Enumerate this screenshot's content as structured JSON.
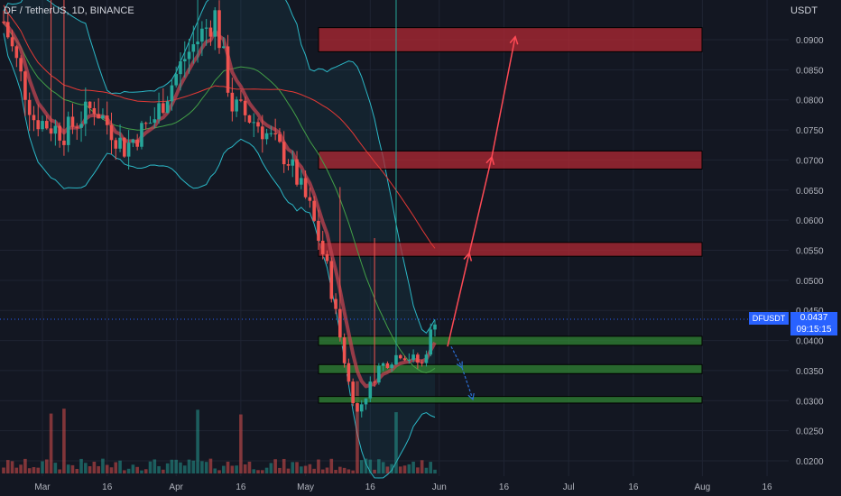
{
  "header": {
    "symbol_title": "DF / TetherUS, 1D, BINANCE",
    "currency": "USDT"
  },
  "price_label": {
    "symbol": "DFUSDT",
    "price": "0.0437",
    "countdown": "09:15:15"
  },
  "colors": {
    "background": "#131722",
    "up": "#26a69a",
    "down": "#ef5350",
    "resistance_zone": "#b22833",
    "support_zone": "#2e7d32",
    "bollinger": "#2bb7c6",
    "ma_red": "#e53935",
    "ma_green": "#43a047",
    "arrow_up": "#ff4a55",
    "arrow_down": "#2b6fd6",
    "price_line": "#2962ff"
  },
  "chart_data": {
    "type": "candlestick",
    "y_axis": {
      "ticks": [
        "0.0900",
        "0.0850",
        "0.0800",
        "0.0750",
        "0.0700",
        "0.0650",
        "0.0600",
        "0.0550",
        "0.0500",
        "0.0450",
        "0.0400",
        "0.0350",
        "0.0300",
        "0.0250",
        "0.0200"
      ],
      "range": [
        0.0185,
        0.0985
      ]
    },
    "x_axis": {
      "ticks": [
        "Mar",
        "16",
        "Apr",
        "16",
        "May",
        "16",
        "Jun",
        "16",
        "Jul",
        "16",
        "Aug",
        "16"
      ]
    },
    "last_price": 0.0437,
    "resistance_zones": [
      {
        "low": 0.088,
        "high": 0.092
      },
      {
        "low": 0.0685,
        "high": 0.0715
      },
      {
        "low": 0.054,
        "high": 0.0563
      }
    ],
    "support_zones": [
      {
        "low": 0.0392,
        "high": 0.0407
      },
      {
        "low": 0.0345,
        "high": 0.036
      },
      {
        "low": 0.0296,
        "high": 0.0307
      }
    ],
    "projection_up_path": [
      0.039,
      0.0545,
      0.0705,
      0.0905
    ],
    "projection_down_path": [
      0.039,
      0.0355,
      0.0302
    ],
    "price_path_anchors": [
      {
        "x": "Feb 20",
        "y": 0.093
      },
      {
        "x": "Feb 27",
        "y": 0.077
      },
      {
        "x": "Mar 6",
        "y": 0.0745
      },
      {
        "x": "Mar 13",
        "y": 0.079
      },
      {
        "x": "Mar 20",
        "y": 0.072
      },
      {
        "x": "Mar 27",
        "y": 0.077
      },
      {
        "x": "Apr 3",
        "y": 0.087
      },
      {
        "x": "Apr 10",
        "y": 0.094
      },
      {
        "x": "Apr 14",
        "y": 0.079
      },
      {
        "x": "Apr 20",
        "y": 0.076
      },
      {
        "x": "Apr 27",
        "y": 0.07
      },
      {
        "x": "May 2",
        "y": 0.062
      },
      {
        "x": "May 6",
        "y": 0.052
      },
      {
        "x": "May 11",
        "y": 0.033
      },
      {
        "x": "May 13",
        "y": 0.028
      },
      {
        "x": "May 18",
        "y": 0.0355
      },
      {
        "x": "May 23",
        "y": 0.038
      },
      {
        "x": "May 28",
        "y": 0.036
      },
      {
        "x": "May 31",
        "y": 0.0437
      }
    ]
  }
}
